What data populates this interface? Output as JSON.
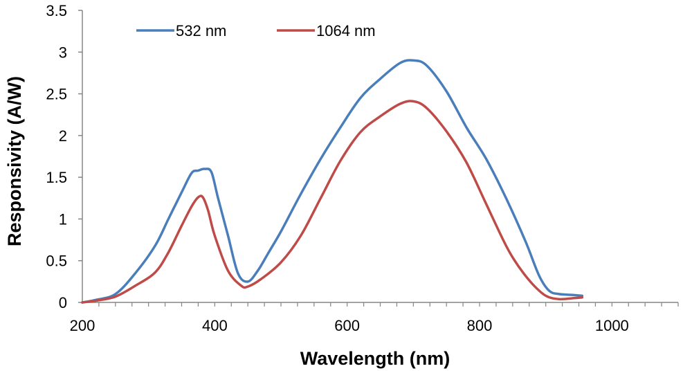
{
  "chart_data": {
    "type": "line",
    "title": "",
    "xlabel": "Wavelength (nm)",
    "ylabel": "Responsivity (A/W)",
    "xlim": [
      200,
      1100
    ],
    "ylim": [
      0,
      3.5
    ],
    "x_ticks": [
      200,
      400,
      600,
      800,
      1000
    ],
    "x_tick_labels": [
      "200",
      "400",
      "600",
      "800",
      "1000"
    ],
    "y_ticks": [
      0,
      0.5,
      1,
      1.5,
      2,
      2.5,
      3,
      3.5
    ],
    "y_tick_labels": [
      "0",
      "0.5",
      "1",
      "1.5",
      "2",
      "2.5",
      "3",
      "3.5"
    ],
    "grid": false,
    "legend_position": "top-left",
    "series": [
      {
        "name": "532 nm",
        "color": "#4a7ebb",
        "x": [
          200,
          220,
          250,
          280,
          310,
          330,
          350,
          365,
          375,
          385,
          395,
          405,
          420,
          435,
          450,
          465,
          480,
          500,
          530,
          560,
          590,
          620,
          650,
          680,
          700,
          720,
          750,
          780,
          810,
          840,
          870,
          890,
          905,
          920,
          940,
          955
        ],
        "y": [
          0.0,
          0.03,
          0.1,
          0.35,
          0.68,
          1.0,
          1.32,
          1.55,
          1.58,
          1.6,
          1.56,
          1.25,
          0.8,
          0.35,
          0.25,
          0.38,
          0.58,
          0.85,
          1.3,
          1.72,
          2.1,
          2.45,
          2.68,
          2.87,
          2.9,
          2.84,
          2.53,
          2.1,
          1.72,
          1.25,
          0.72,
          0.32,
          0.14,
          0.1,
          0.09,
          0.08
        ]
      },
      {
        "name": "1064 nm",
        "color": "#be4b48",
        "x": [
          200,
          220,
          250,
          280,
          310,
          330,
          350,
          365,
          375,
          382,
          390,
          400,
          420,
          440,
          450,
          470,
          500,
          530,
          560,
          590,
          620,
          650,
          680,
          700,
          720,
          750,
          780,
          810,
          840,
          860,
          880,
          900,
          920,
          940,
          955
        ],
        "y": [
          0.0,
          0.02,
          0.07,
          0.2,
          0.36,
          0.6,
          0.92,
          1.15,
          1.26,
          1.26,
          1.1,
          0.8,
          0.38,
          0.2,
          0.19,
          0.28,
          0.48,
          0.8,
          1.25,
          1.7,
          2.04,
          2.23,
          2.38,
          2.41,
          2.33,
          2.05,
          1.68,
          1.18,
          0.68,
          0.42,
          0.22,
          0.08,
          0.04,
          0.05,
          0.06
        ]
      }
    ]
  }
}
